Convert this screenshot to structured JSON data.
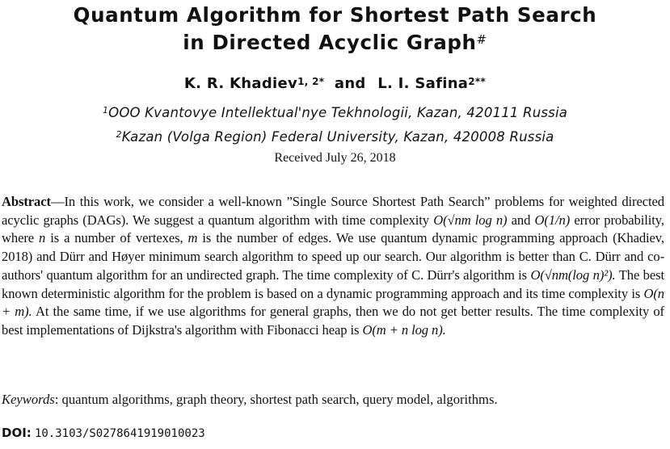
{
  "title": {
    "line1": "Quantum Algorithm for Shortest Path Search",
    "line2": "in Directed Acyclic Graph",
    "mark": "#"
  },
  "authors": {
    "a1_name": "K. R. Khadiev",
    "a1_sup": "1, 2*",
    "and": "and",
    "a2_name": "L. I. Safina",
    "a2_sup": "2**"
  },
  "affiliations": [
    {
      "sup": "1",
      "text": "OOO Kvantovye Intellektual'nye Tekhnologii, Kazan, 420111 Russia"
    },
    {
      "sup": "2",
      "text": "Kazan (Volga Region) Federal University, Kazan, 420008 Russia"
    }
  ],
  "received": "Received July 26, 2018",
  "abstract": {
    "label": "Abstract",
    "s1": "—In this work, we consider a well-known ”Single Source Shortest Path Search” problems for weighted directed acyclic graphs (DAGs). We suggest a quantum algorithm with time complexity",
    "c1": "O(√nm log n)",
    "s2": "and",
    "c2": "O(1/n)",
    "s3": "error probability, where",
    "v_n": "n",
    "s4": "is a number of vertexes,",
    "v_m": "m",
    "s5": "is the number of edges.  We use quantum dynamic programming approach (Khadiev, 2018) and Dürr and Høyer minimum search algorithm to speed up our search.  Our algorithm is better than C. Dürr and co-authors' quantum algorithm for an undirected graph.  The time complexity of C. Dürr's algorithm is",
    "c3": "O(√nm(log n)²).",
    "s6": "The best known deterministic algorithm for the problem is based on a dynamic programming approach and its time complexity is",
    "c4": "O(n + m).",
    "s7": "At the same time, if we use algorithms for general graphs, then we do not get better results.  The time complexity of best implementations of Dijkstra's algorithm with Fibonacci heap is",
    "c5": "O(m + n log n)."
  },
  "keywords": {
    "label": "Keywords",
    "text": ": quantum algorithms, graph theory, shortest path search, query model, algorithms."
  },
  "doi": {
    "label": "DOI:",
    "value": "10.3103/S0278641919010023"
  }
}
